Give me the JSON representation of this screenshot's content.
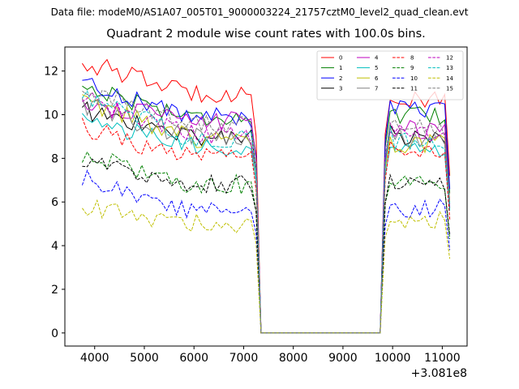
{
  "figure": {
    "suptitle": "Data file: modeM0/AS1A07_005T01_9000003224_21757cztM0_level2_quad_clean.evt"
  },
  "chart_data": {
    "type": "line",
    "title": "Quadrant 2 module wise count rates with 100.0s bins.",
    "xlabel": "",
    "ylabel": "",
    "x_offset_label": "+3.081e8",
    "xlim": [
      3400,
      11500
    ],
    "ylim": [
      -0.6,
      13.1
    ],
    "xticks": [
      4000,
      5000,
      6000,
      7000,
      8000,
      9000,
      10000,
      11000
    ],
    "yticks": [
      0,
      2,
      4,
      6,
      8,
      10,
      12
    ],
    "legend_position": "top-right",
    "legend_columns": 4,
    "segments": [
      {
        "start": 3750,
        "end": 7250,
        "step": 100
      },
      {
        "start": 7350,
        "end": 9750,
        "step": 100
      },
      {
        "start": 9850,
        "end": 11150,
        "step": 100
      }
    ],
    "series": [
      {
        "name": "0",
        "color": "#ff0000",
        "dash": "solid",
        "level1": 11.0,
        "start": 12.4,
        "level2": 10.6,
        "end": 7.2
      },
      {
        "name": "1",
        "color": "#008000",
        "dash": "solid",
        "level1": 9.9,
        "start": 11.3,
        "level2": 9.9,
        "end": 6.4
      },
      {
        "name": "2",
        "color": "#0000ff",
        "dash": "solid",
        "level1": 9.9,
        "start": 11.5,
        "level2": 10.2,
        "end": 6.6
      },
      {
        "name": "3",
        "color": "#000000",
        "dash": "solid",
        "level1": 9.0,
        "start": 10.2,
        "level2": 8.9,
        "end": 5.7
      },
      {
        "name": "4",
        "color": "#bf00bf",
        "dash": "solid",
        "level1": 9.7,
        "start": 10.5,
        "level2": 9.3,
        "end": 5.9
      },
      {
        "name": "5",
        "color": "#00bfbf",
        "dash": "solid",
        "level1": 8.5,
        "start": 9.8,
        "level2": 8.4,
        "end": 5.6
      },
      {
        "name": "6",
        "color": "#bfbf00",
        "dash": "solid",
        "level1": 8.9,
        "start": 10.6,
        "level2": 8.7,
        "end": 6.0
      },
      {
        "name": "7",
        "color": "#808080",
        "dash": "solid",
        "level1": 9.0,
        "start": 10.4,
        "level2": 8.9,
        "end": 5.8
      },
      {
        "name": "8",
        "color": "#ff0000",
        "dash": "dashed",
        "level1": 8.0,
        "start": 9.4,
        "level2": 8.1,
        "end": 5.2
      },
      {
        "name": "9",
        "color": "#008000",
        "dash": "dashed",
        "level1": 6.8,
        "start": 8.2,
        "level2": 6.9,
        "end": 4.3
      },
      {
        "name": "10",
        "color": "#0000ff",
        "dash": "dashed",
        "level1": 5.6,
        "start": 7.1,
        "level2": 5.7,
        "end": 3.8
      },
      {
        "name": "11",
        "color": "#000000",
        "dash": "dashed",
        "level1": 6.8,
        "start": 7.9,
        "level2": 6.9,
        "end": 4.5
      },
      {
        "name": "12",
        "color": "#bf00bf",
        "dash": "dashed",
        "level1": 9.1,
        "start": 10.8,
        "level2": 9.1,
        "end": 5.8
      },
      {
        "name": "13",
        "color": "#00bfbf",
        "dash": "dashed",
        "level1": 8.9,
        "start": 10.9,
        "level2": 8.8,
        "end": 5.9
      },
      {
        "name": "14",
        "color": "#bfbf00",
        "dash": "dashed",
        "level1": 5.0,
        "start": 5.8,
        "level2": 5.1,
        "end": 3.4
      },
      {
        "name": "15",
        "color": "#808080",
        "dash": "dashed",
        "level1": 9.6,
        "start": 11.1,
        "level2": 9.4,
        "end": 6.1
      }
    ]
  }
}
